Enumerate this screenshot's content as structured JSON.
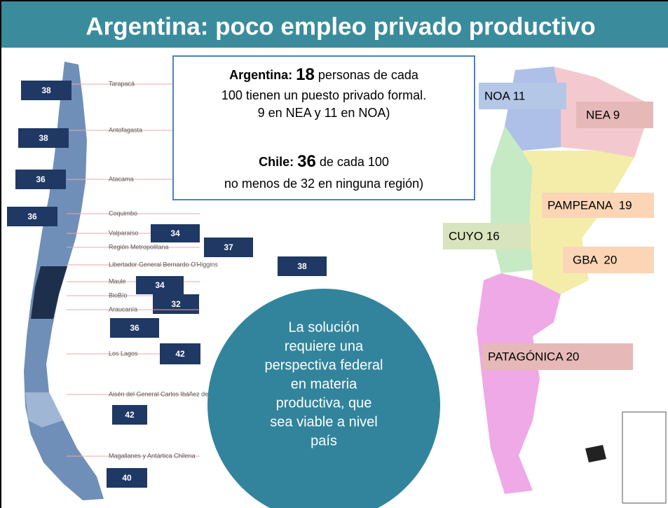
{
  "title": "Argentina: poco empleo privado productivo",
  "info_box": {
    "argentina": {
      "label": "Argentina:",
      "value": 18,
      "lines": [
        "personas de cada",
        "100 tienen un puesto privado formal.",
        "9 en NEA y 11 en NOA)"
      ]
    },
    "chile": {
      "label": "Chile:",
      "value": 36,
      "lines": [
        "de cada 100",
        "no menos de 32 en ninguna región)"
      ]
    }
  },
  "chile_regions": [
    {
      "name": "Tarapacá",
      "value": 38
    },
    {
      "name": "Antofagasta",
      "value": 38
    },
    {
      "name": "Atacama",
      "value": 36
    },
    {
      "name": "Coquimbo",
      "value": 36
    },
    {
      "name": "Valparaíso",
      "value": 34
    },
    {
      "name": "Región Metropolitana",
      "value": 37
    },
    {
      "name": "Libertador General Bernardo O'Higgins",
      "value": 38
    },
    {
      "name": "Maule",
      "value": 34
    },
    {
      "name": "BioBío",
      "value": 32
    },
    {
      "name": "Araucanía",
      "value": 36
    },
    {
      "name": "Los Lagos",
      "value": 42
    },
    {
      "name": "Aisén del General Carlos Ibáñez del Campo",
      "value": 42
    },
    {
      "name": "Magallanes y Antártica Chilena",
      "value": 40
    }
  ],
  "argentina_regions": [
    "NOA 11",
    "NEA 9",
    "PAMPEANA  19",
    "CUYO 16",
    "GBA  20",
    "PATAGÓNICA 20"
  ],
  "callout": [
    "La solución",
    "requiere una",
    "perspectiva federal",
    "en materia",
    "productiva, que",
    "sea viable a nivel",
    "país"
  ]
}
